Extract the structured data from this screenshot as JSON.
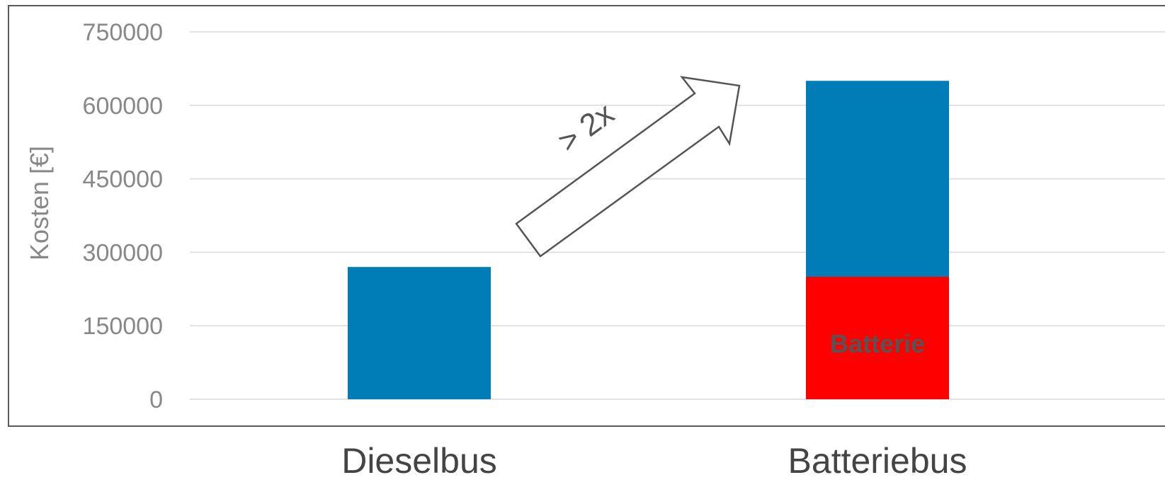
{
  "chart_data": {
    "type": "bar",
    "stacked": true,
    "categories": [
      "Dieselbus",
      "Batteriebus"
    ],
    "series": [
      {
        "values": [
          0,
          250000
        ],
        "color": "#FF0000"
      },
      {
        "values": [
          270000,
          400000
        ],
        "color": "#007DB6"
      }
    ],
    "ylabel": "Kosten [€]",
    "ylim": [
      0,
      750000
    ],
    "yticks": [
      0,
      150000,
      300000,
      450000,
      600000,
      750000
    ],
    "ytick_labels": [
      "0",
      "150000",
      "300000",
      "450000",
      "600000",
      "750000"
    ],
    "grid": true,
    "legend": "none",
    "annotations": {
      "segment_label": "Batterie",
      "arrow_label": "> 2x"
    }
  },
  "colors": {
    "axis_text": "#888888",
    "category_text": "#444444",
    "gridline": "#D9D9D9",
    "frame": "#595959",
    "annotation_text": "#555555",
    "arrow_stroke": "#555555",
    "arrow_fill": "#FFFFFF"
  }
}
